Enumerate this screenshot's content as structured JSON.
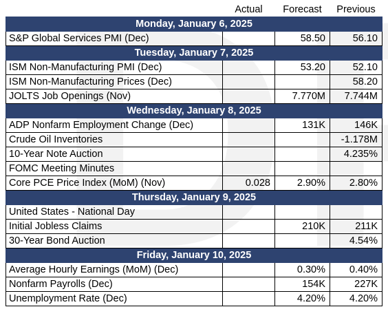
{
  "header": {
    "actual": "Actual",
    "forecast": "Forecast",
    "previous": "Previous"
  },
  "sections": [
    {
      "date": "Monday, January 6, 2025",
      "events": [
        {
          "name": "S&P Global Services PMI (Dec)",
          "actual": "",
          "forecast": "58.50",
          "previous": "56.10"
        }
      ]
    },
    {
      "date": "Tuesday, January 7, 2025",
      "events": [
        {
          "name": "ISM Non-Manufacturing PMI (Dec)",
          "actual": "",
          "forecast": "53.20",
          "previous": "52.10"
        },
        {
          "name": "ISM Non-Manufacturing Prices (Dec)",
          "actual": "",
          "forecast": "",
          "previous": "58.20"
        },
        {
          "name": "JOLTS Job Openings (Nov)",
          "actual": "",
          "forecast": "7.770M",
          "previous": "7.744M"
        }
      ]
    },
    {
      "date": "Wednesday, January 8, 2025",
      "events": [
        {
          "name": "ADP Nonfarm Employment Change (Dec)",
          "actual": "",
          "forecast": "131K",
          "previous": "146K"
        },
        {
          "name": "Crude Oil Inventories",
          "actual": "",
          "forecast": "",
          "previous": "-1.178M"
        },
        {
          "name": "10-Year Note Auction",
          "actual": "",
          "forecast": "",
          "previous": "4.235%"
        },
        {
          "name": "FOMC Meeting Minutes",
          "actual": "",
          "forecast": "",
          "previous": ""
        },
        {
          "name": "Core PCE Price Index (MoM) (Nov)",
          "actual": "0.028",
          "forecast": "2.90%",
          "previous": "2.80%"
        }
      ]
    },
    {
      "date": "Thursday, January 9, 2025",
      "events": [
        {
          "name": "United States - National Day",
          "actual": "",
          "forecast": "",
          "previous": ""
        },
        {
          "name": "Initial Jobless Claims",
          "actual": "",
          "forecast": "210K",
          "previous": "211K"
        },
        {
          "name": "30-Year Bond Auction",
          "actual": "",
          "forecast": "",
          "previous": "4.54%"
        }
      ]
    },
    {
      "date": "Friday, January 10, 2025",
      "events": [
        {
          "name": "Average Hourly Earnings (MoM) (Dec)",
          "actual": "",
          "forecast": "0.30%",
          "previous": "0.40%"
        },
        {
          "name": "Nonfarm Payrolls (Dec)",
          "actual": "",
          "forecast": "154K",
          "previous": "227K"
        },
        {
          "name": "Unemployment Rate (Dec)",
          "actual": "",
          "forecast": "4.20%",
          "previous": "4.20%"
        }
      ]
    }
  ],
  "watermark": "DRAFT",
  "colors": {
    "section_header_bg": "#2e4370",
    "section_header_text": "#ffffff",
    "watermark": "#f2f2f2"
  }
}
